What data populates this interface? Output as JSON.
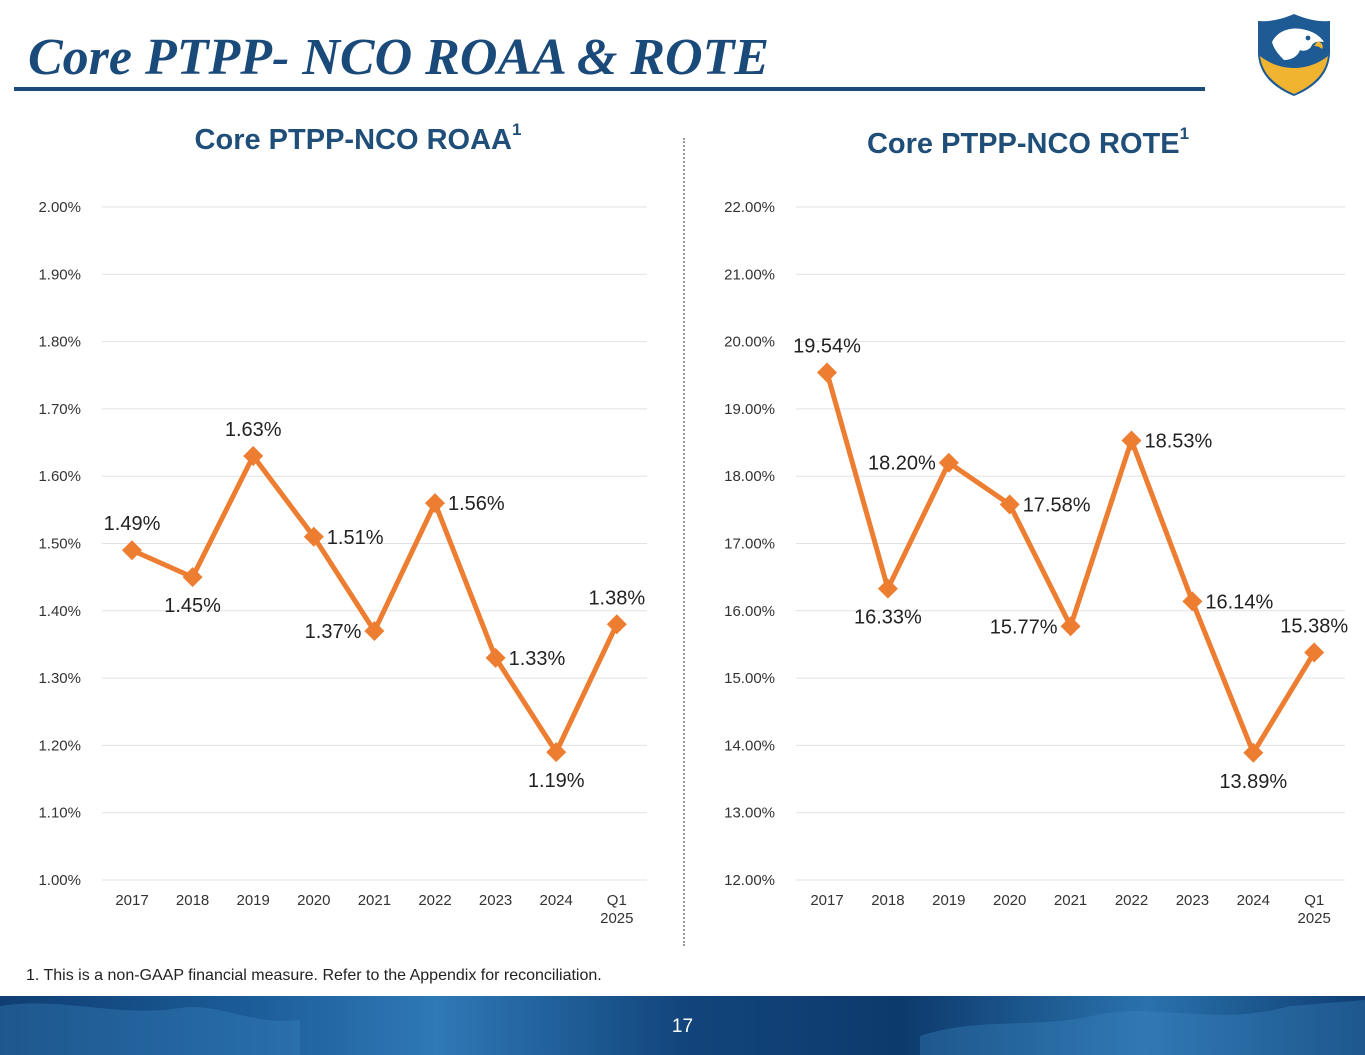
{
  "page": {
    "title": "Core PTPP- NCO ROAA & ROTE",
    "footnote": "1. This is a non-GAAP financial measure. Refer to the Appendix for reconciliation.",
    "page_number": "17"
  },
  "colors": {
    "title": "#1a4a7a",
    "chart_title": "#1f4e79",
    "series_line": "#ed7d31",
    "grid": "#e2e2e2",
    "footer": "#1b5c98"
  },
  "logo": {
    "icon": "eagle-shield-icon"
  },
  "chart_data": [
    {
      "type": "line",
      "title": "Core PTPP-NCO ROAA",
      "title_superscript": "1",
      "categories": [
        "2017",
        "2018",
        "2019",
        "2020",
        "2021",
        "2022",
        "2023",
        "2024",
        "Q1 2025"
      ],
      "y_unit": "%",
      "ylim": [
        1.0,
        2.0
      ],
      "yticks": [
        "1.00%",
        "1.10%",
        "1.20%",
        "1.30%",
        "1.40%",
        "1.50%",
        "1.60%",
        "1.70%",
        "1.80%",
        "1.90%",
        "2.00%"
      ],
      "grid": true,
      "marker": "diamond",
      "series": [
        {
          "values": [
            1.49,
            1.45,
            1.63,
            1.51,
            1.37,
            1.56,
            1.33,
            1.19,
            1.38
          ],
          "labels": [
            "1.49%",
            "1.45%",
            "1.63%",
            "1.51%",
            "1.37%",
            "1.56%",
            "1.33%",
            "1.19%",
            "1.38%"
          ],
          "label_positions": [
            "above",
            "below",
            "above",
            "right",
            "left",
            "right",
            "right",
            "below",
            "above"
          ]
        }
      ]
    },
    {
      "type": "line",
      "title": "Core PTPP-NCO ROTE",
      "title_superscript": "1",
      "categories": [
        "2017",
        "2018",
        "2019",
        "2020",
        "2021",
        "2022",
        "2023",
        "2024",
        "Q1 2025"
      ],
      "y_unit": "%",
      "ylim": [
        12.0,
        22.0
      ],
      "yticks": [
        "12.00%",
        "13.00%",
        "14.00%",
        "15.00%",
        "16.00%",
        "17.00%",
        "18.00%",
        "19.00%",
        "20.00%",
        "21.00%",
        "22.00%"
      ],
      "grid": true,
      "marker": "diamond",
      "series": [
        {
          "values": [
            19.54,
            16.33,
            18.2,
            17.58,
            15.77,
            18.53,
            16.14,
            13.89,
            15.38
          ],
          "labels": [
            "19.54%",
            "16.33%",
            "18.20%",
            "17.58%",
            "15.77%",
            "18.53%",
            "16.14%",
            "13.89%",
            "15.38%"
          ],
          "label_positions": [
            "above",
            "below",
            "left",
            "right",
            "left",
            "right",
            "right",
            "below",
            "above"
          ]
        }
      ]
    }
  ]
}
